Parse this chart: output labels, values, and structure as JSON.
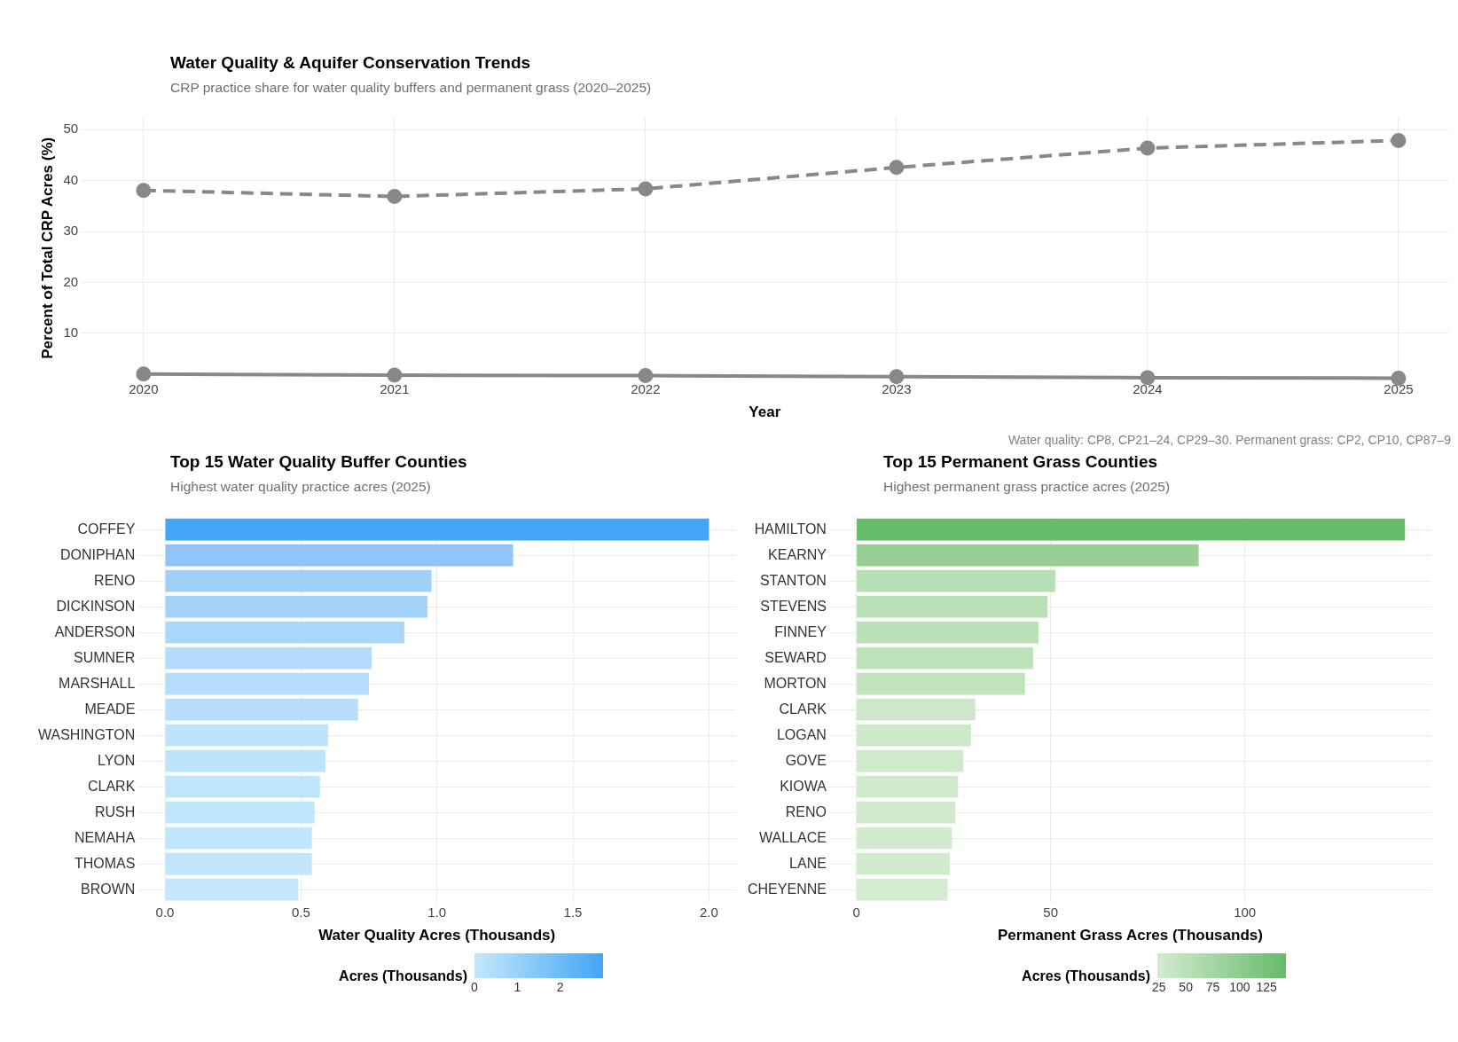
{
  "chart_data": [
    {
      "type": "line",
      "title": "Water Quality & Aquifer Conservation Trends",
      "subtitle": "CRP practice share for water quality buffers and permanent grass (2020–2025)",
      "xlabel": "Year",
      "ylabel": "Percent of Total CRP Acres (%)",
      "annotations": [
        "Water quality: CP8, CP21–24, CP29–30. Permanent grass: CP2, CP10, CP87–9"
      ],
      "x": [
        2020,
        2021,
        2022,
        2023,
        2024,
        2025
      ],
      "series": [
        {
          "color": "#888888",
          "line_style": "solid",
          "values": [
            2.0,
            1.8,
            1.7,
            1.5,
            1.3,
            1.2
          ]
        },
        {
          "color": "#888888",
          "line_style": "dashed",
          "values": [
            38.1,
            36.9,
            38.4,
            42.6,
            46.4,
            47.9
          ]
        }
      ],
      "xlim": [
        2019.75,
        2025.2
      ],
      "xticks": [
        2020,
        2021,
        2022,
        2023,
        2024,
        2025
      ],
      "ylim": [
        1,
        52.5
      ],
      "yticks": [
        10,
        20,
        30,
        40,
        50
      ],
      "grid": true,
      "legend": false,
      "marker": "circle"
    },
    {
      "type": "bar",
      "orientation": "horizontal",
      "title": "Top 15 Water Quality Buffer Counties",
      "subtitle": "Highest water quality practice acres (2025)",
      "xlabel": "Water Quality Acres (Thousands)",
      "clabel": "Acres (Thousands)",
      "categories": [
        "COFFEY",
        "DONIPHAN",
        "RENO",
        "DICKINSON",
        "ANDERSON",
        "SUMNER",
        "MARSHALL",
        "MEADE",
        "WASHINGTON",
        "LYON",
        "CLARK",
        "RUSH",
        "NEMAHA",
        "THOMAS",
        "BROWN"
      ],
      "values": [
        2.0,
        1.28,
        0.98,
        0.965,
        0.88,
        0.76,
        0.75,
        0.71,
        0.6,
        0.59,
        0.57,
        0.55,
        0.54,
        0.54,
        0.49
      ],
      "colors": [
        "#42a5f5",
        "#90c4f8",
        "#a0d0f9",
        "#a2d1f9",
        "#aad7fa",
        "#b3dcfb",
        "#b4ddfb",
        "#b6defb",
        "#bde4fb",
        "#bee4fb",
        "#bfe5fb",
        "#c0e6fb",
        "#c1e6fb",
        "#c1e6fb",
        "#c4e8fb"
      ],
      "xlim": [
        -0.1,
        2.1
      ],
      "xticks": [
        {
          "value": 0,
          "label": "0.0"
        },
        {
          "value": 0.5,
          "label": "0.5"
        },
        {
          "value": 1,
          "label": "1.0"
        },
        {
          "value": 1.5,
          "label": "1.5"
        },
        {
          "value": 2,
          "label": "2.0"
        }
      ],
      "clim": [
        0,
        3
      ],
      "cticks": [
        0,
        1,
        2
      ],
      "grid": true,
      "legend": false
    },
    {
      "type": "bar",
      "orientation": "horizontal",
      "title": "Top 15 Permanent Grass Counties",
      "subtitle": "Highest permanent grass practice acres (2025)",
      "xlabel": "Permanent Grass Acres (Thousands)",
      "clabel": "Acres (Thousands)",
      "categories": [
        "HAMILTON",
        "KEARNY",
        "STANTON",
        "STEVENS",
        "FINNEY",
        "SEWARD",
        "MORTON",
        "CLARK",
        "LOGAN",
        "GOVE",
        "KIOWA",
        "RENO",
        "WALLACE",
        "LANE",
        "CHEYENNE"
      ],
      "values": [
        141.2,
        88.1,
        51.2,
        49.2,
        46.9,
        45.5,
        43.4,
        30.6,
        29.5,
        27.5,
        26.2,
        25.5,
        24.6,
        24.1,
        23.5
      ],
      "colors": [
        "#66bb6a",
        "#99cf95",
        "#b7dfb4",
        "#b9e0b6",
        "#bbe1b8",
        "#bde2ba",
        "#c0e3bc",
        "#cce8c8",
        "#cde9c9",
        "#cfe9cb",
        "#d0eacc",
        "#d1eacd",
        "#d2ebce",
        "#d2ebce",
        "#d3ebcf"
      ],
      "xlim": [
        -7,
        148
      ],
      "xticks": [
        0,
        50,
        100
      ],
      "clim": [
        23.5,
        143
      ],
      "cticks": [
        25,
        50,
        75,
        100,
        125
      ],
      "grid": true,
      "legend": false
    }
  ]
}
